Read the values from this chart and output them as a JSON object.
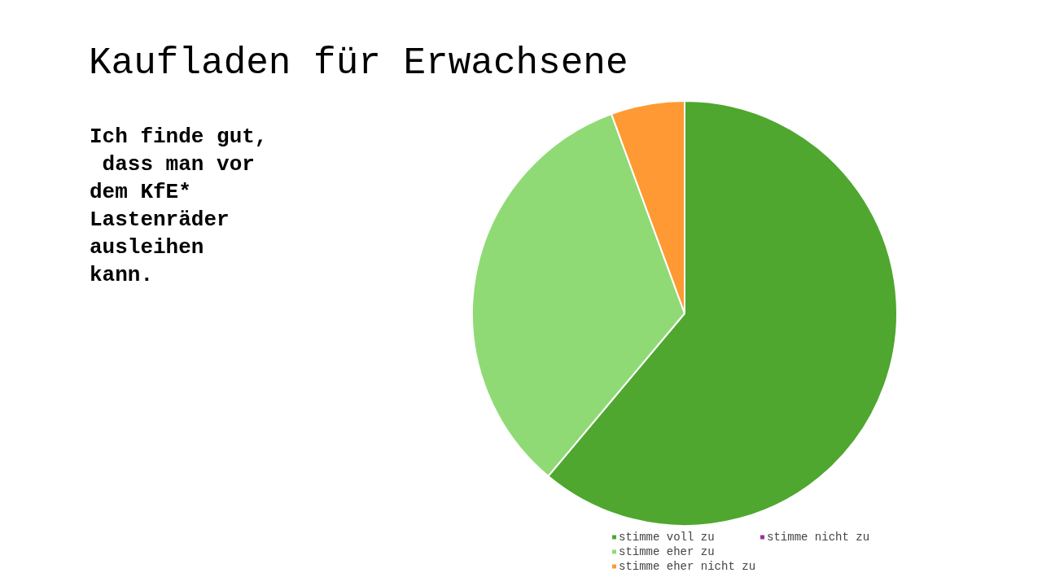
{
  "chart_data": {
    "type": "pie",
    "title": "Kaufladen für Erwachsene",
    "subtitle": "Ich finde gut, dass man vor dem KfE* Lastenräder ausleihen kann.",
    "categories": [
      "stimme voll zu",
      "stimme eher zu",
      "stimme eher nicht zu",
      "stimme nicht zu"
    ],
    "values": [
      61.1,
      33.3,
      5.6,
      0
    ],
    "colors": [
      "#4fa72f",
      "#90da76",
      "#ff9933",
      "#993399"
    ],
    "legend": "bottom"
  }
}
